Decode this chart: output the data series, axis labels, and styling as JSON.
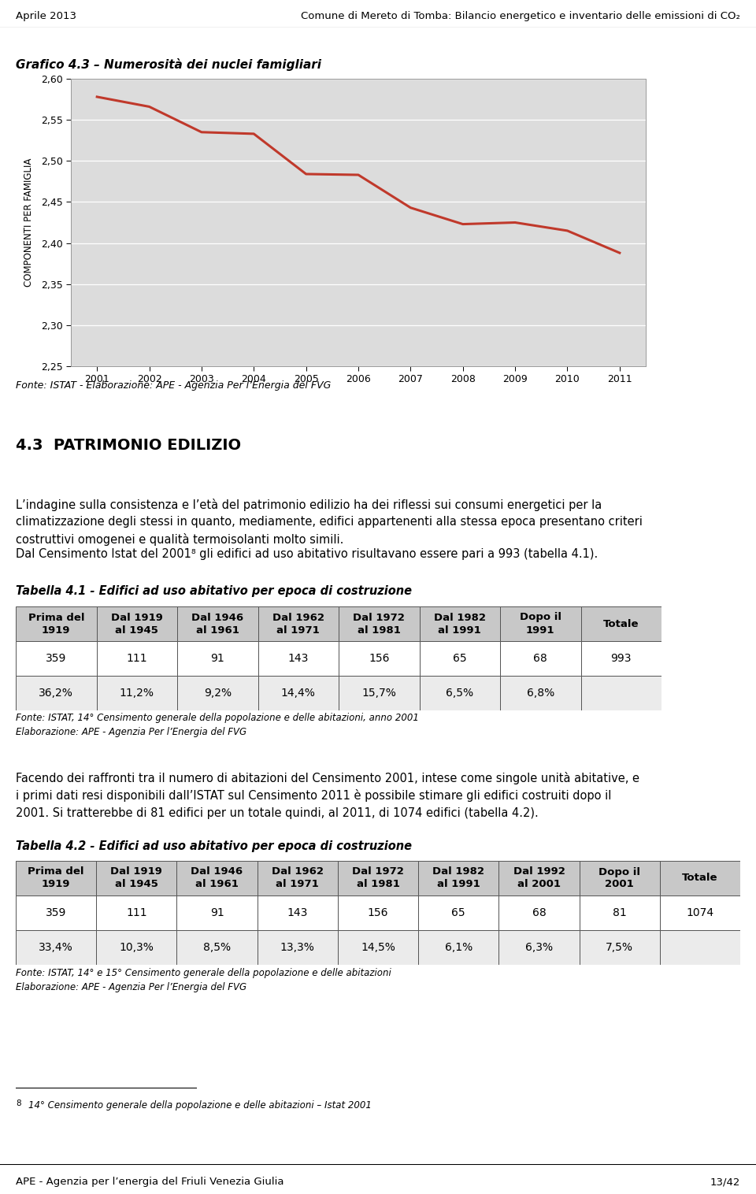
{
  "header_left": "Aprile 2013",
  "header_right": "Comune di Mereto di Tomba: Bilancio energetico e inventario delle emissioni di CO₂",
  "chart_title": "Grafico 4.3 – Numerosità dei nuclei famigliari",
  "chart_ylabel": "COMPONENTI PER FAMIGLIA",
  "chart_years": [
    2001,
    2002,
    2003,
    2004,
    2005,
    2006,
    2007,
    2008,
    2009,
    2010,
    2011
  ],
  "chart_values": [
    2.578,
    2.566,
    2.535,
    2.533,
    2.484,
    2.483,
    2.443,
    2.423,
    2.425,
    2.415,
    2.388
  ],
  "chart_ylim": [
    2.25,
    2.6
  ],
  "chart_yticks": [
    2.25,
    2.3,
    2.35,
    2.4,
    2.45,
    2.5,
    2.55,
    2.6
  ],
  "chart_source": "Fonte: ISTAT - Elaborazione: APE - Agenzia Per l’Energia del FVG",
  "line_color": "#c0392b",
  "section_title": "4.3  PATRIMONIO EDILIZIO",
  "body_text1_line1": "L’indagine sulla consistenza e l’età del patrimonio edilizio ha dei riflessi sui consumi energetici per la",
  "body_text1_line2": "climatizzazione degli stessi in quanto, mediamente, edifici appartenenti alla stessa epoca presentano criteri",
  "body_text1_line3": "costruttivi omogenei e qualità termoisolanti molto simili.",
  "body_text2": "Dal Censimento Istat del 2001⁸ gli edifici ad uso abitativo risultavano essere pari a 993 (tabella 4.1).",
  "table1_title": "Tabella 4.1 - Edifici ad uso abitativo per epoca di costruzione",
  "table1_headers": [
    "Prima del\n1919",
    "Dal 1919\nal 1945",
    "Dal 1946\nal 1961",
    "Dal 1962\nal 1971",
    "Dal 1972\nal 1981",
    "Dal 1982\nal 1991",
    "Dopo il\n1991",
    "Totale"
  ],
  "table1_row1": [
    "359",
    "111",
    "91",
    "143",
    "156",
    "65",
    "68",
    "993"
  ],
  "table1_row2": [
    "36,2%",
    "11,2%",
    "9,2%",
    "14,4%",
    "15,7%",
    "6,5%",
    "6,8%",
    ""
  ],
  "table1_source1": "Fonte: ISTAT, 14° Censimento generale della popolazione e delle abitazioni, anno 2001",
  "table1_source2": "Elaborazione: APE - Agenzia Per l’Energia del FVG",
  "body_text3_line1": "Facendo dei raffronti tra il numero di abitazioni del Censimento 2001, intese come singole unità abitative, e",
  "body_text3_line2": "i primi dati resi disponibili dall’ISTAT sul Censimento 2011 è possibile stimare gli edifici costruiti dopo il",
  "body_text3_line3": "2001. Si tratterebbe di 81 edifici per un totale quindi, al 2011, di 1074 edifici (tabella 4.2).",
  "table2_title": "Tabella 4.2 - Edifici ad uso abitativo per epoca di costruzione",
  "table2_headers": [
    "Prima del\n1919",
    "Dal 1919\nal 1945",
    "Dal 1946\nal 1961",
    "Dal 1962\nal 1971",
    "Dal 1972\nal 1981",
    "Dal 1982\nal 1991",
    "Dal 1992\nal 2001",
    "Dopo il\n2001",
    "Totale"
  ],
  "table2_row1": [
    "359",
    "111",
    "91",
    "143",
    "156",
    "65",
    "68",
    "81",
    "1074"
  ],
  "table2_row2": [
    "33,4%",
    "10,3%",
    "8,5%",
    "13,3%",
    "14,5%",
    "6,1%",
    "6,3%",
    "7,5%",
    ""
  ],
  "table2_source1": "Fonte: ISTAT, 14° e 15° Censimento generale della popolazione e delle abitazioni",
  "table2_source2": "Elaborazione: APE - Agenzia Per l’Energia del FVG",
  "footnote_sup": "8",
  "footnote_text": "14° Censimento generale della popolazione e delle abitazioni – Istat 2001",
  "footer_left": "APE - Agenzia per l’energia del Friuli Venezia Giulia",
  "footer_right": "13/42",
  "bg_color": "#ffffff",
  "chart_bg": "#dcdcdc",
  "table_header_bg": "#c8c8c8",
  "table_alt_bg": "#ebebeb"
}
